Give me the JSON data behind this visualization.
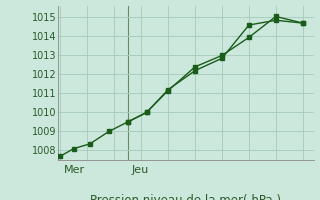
{
  "title": "Pression niveau de la mer( hPa )",
  "bg_color": "#cce8dc",
  "line_color": "#1a5c1a",
  "grid_color": "#aacfbe",
  "vline_color": "#6a8a6a",
  "ylim": [
    1007.5,
    1015.6
  ],
  "yticks": [
    1008,
    1009,
    1010,
    1011,
    1012,
    1013,
    1014,
    1015
  ],
  "line1_x": [
    0,
    0.5,
    1.1,
    1.8,
    2.5,
    3.2,
    4.0,
    5.0,
    6.0,
    7.0,
    8.0,
    9.0
  ],
  "line1_y": [
    1007.7,
    1008.1,
    1008.35,
    1009.0,
    1009.5,
    1010.0,
    1011.15,
    1012.4,
    1013.0,
    1013.95,
    1015.05,
    1014.7
  ],
  "line2_x": [
    2.5,
    3.2,
    4.0,
    5.0,
    6.0,
    7.0,
    8.0,
    9.0
  ],
  "line2_y": [
    1009.5,
    1010.0,
    1011.2,
    1012.2,
    1012.85,
    1014.6,
    1014.85,
    1014.7
  ],
  "xlim": [
    -0.1,
    9.4
  ],
  "vline_x": 2.5,
  "xtick_positions": [
    0.15,
    2.65
  ],
  "xtick_labels": [
    "Mer",
    "Jeu"
  ],
  "xlabel_fontsize": 8,
  "ylabel_fontsize": 7,
  "title_fontsize": 8.5,
  "marker_size": 3,
  "linewidth": 1.0
}
